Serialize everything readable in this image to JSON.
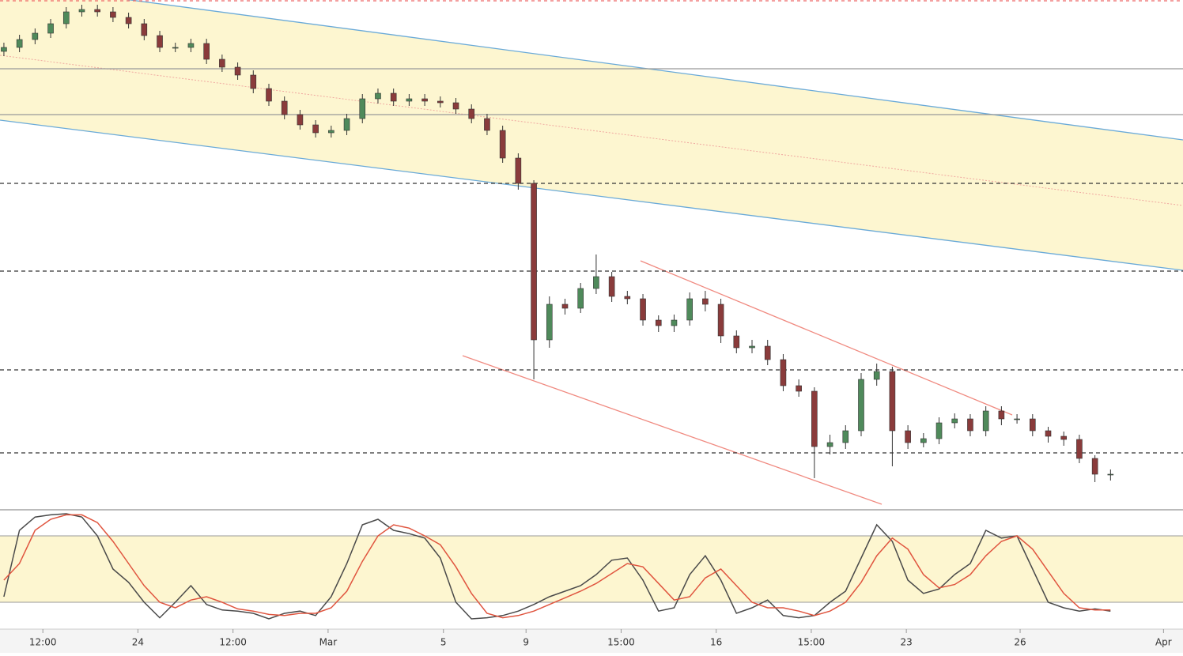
{
  "chart_data": [
    {
      "type": "candlestick",
      "xlim": [
        -0.25,
        75.65
      ],
      "ylim": [
        0,
        640
      ],
      "up_color": "#4f8a5b",
      "down_color": "#8a3b3b",
      "open": [
        575,
        580,
        590,
        598,
        610,
        625,
        628,
        625,
        618,
        610,
        595,
        580,
        580,
        585,
        565,
        555,
        545,
        528,
        512,
        495,
        482,
        472,
        475,
        490,
        515,
        522,
        512,
        515,
        512,
        510,
        502,
        490,
        475,
        440,
        408,
        210,
        255,
        250,
        275,
        290,
        265,
        262,
        235,
        228,
        235,
        262,
        255,
        215,
        200,
        202,
        185,
        152,
        145,
        75,
        80,
        95,
        160,
        170,
        95,
        80,
        85,
        105,
        110,
        95,
        120,
        110,
        110,
        95,
        88,
        84,
        60,
        40
      ],
      "high": [
        586,
        596,
        604,
        616,
        631,
        634,
        634,
        631,
        624,
        616,
        601,
        586,
        591,
        591,
        571,
        561,
        551,
        534,
        518,
        501,
        488,
        481,
        496,
        521,
        528,
        528,
        521,
        521,
        518,
        516,
        508,
        496,
        481,
        446,
        412,
        265,
        262,
        282,
        318,
        296,
        272,
        268,
        241,
        242,
        270,
        272,
        262,
        222,
        210,
        210,
        192,
        160,
        150,
        90,
        102,
        168,
        180,
        176,
        102,
        92,
        112,
        117,
        116,
        126,
        126,
        116,
        116,
        100,
        94,
        90,
        64,
        46
      ],
      "low": [
        569,
        574,
        584,
        592,
        604,
        619,
        619,
        612,
        604,
        589,
        574,
        574,
        574,
        559,
        549,
        539,
        522,
        506,
        489,
        476,
        466,
        466,
        469,
        484,
        509,
        506,
        506,
        506,
        504,
        496,
        484,
        469,
        434,
        400,
        160,
        200,
        242,
        244,
        268,
        258,
        255,
        228,
        220,
        220,
        228,
        246,
        206,
        193,
        193,
        178,
        145,
        138,
        35,
        65,
        72,
        88,
        152,
        50,
        72,
        74,
        78,
        98,
        88,
        88,
        102,
        104,
        88,
        80,
        76,
        54,
        30,
        32
      ],
      "close": [
        580,
        590,
        598,
        610,
        625,
        628,
        625,
        618,
        610,
        595,
        580,
        580,
        585,
        565,
        555,
        545,
        528,
        512,
        495,
        482,
        472,
        475,
        490,
        515,
        522,
        512,
        515,
        512,
        510,
        502,
        490,
        475,
        440,
        408,
        210,
        255,
        250,
        275,
        290,
        265,
        262,
        235,
        228,
        235,
        262,
        255,
        215,
        200,
        202,
        185,
        152,
        145,
        75,
        80,
        95,
        160,
        170,
        95,
        80,
        85,
        105,
        110,
        95,
        120,
        110,
        110,
        95,
        88,
        84,
        60,
        40,
        40
      ],
      "levels": [
        408,
        297,
        172,
        67
      ],
      "solid_levels": [
        553,
        495
      ],
      "top_level": 640
    },
    {
      "type": "line",
      "xlim": [
        -0.25,
        75.65
      ],
      "ylim": [
        0,
        100
      ],
      "band": [
        20,
        80
      ],
      "band_color": "#fdf6d0",
      "series": [
        {
          "color": "#4a4a4a",
          "values": [
            25,
            85,
            97,
            99,
            100,
            97,
            80,
            50,
            38,
            20,
            6,
            20,
            35,
            18,
            13,
            12,
            10,
            5,
            10,
            12,
            8,
            25,
            55,
            90,
            95,
            85,
            82,
            78,
            60,
            20,
            5,
            6,
            8,
            12,
            18,
            25,
            30,
            35,
            45,
            58,
            60,
            40,
            12,
            15,
            45,
            62,
            40,
            10,
            15,
            22,
            8,
            6,
            8,
            20,
            30,
            60,
            90,
            75,
            40,
            28,
            32,
            45,
            55,
            85,
            78,
            80,
            50,
            20,
            15,
            12,
            14,
            12
          ]
        },
        {
          "color": "#e0553f",
          "values": [
            40,
            55,
            85,
            95,
            99,
            99,
            92,
            75,
            55,
            35,
            20,
            15,
            22,
            25,
            20,
            14,
            12,
            9,
            8,
            10,
            10,
            15,
            30,
            57,
            80,
            90,
            87,
            80,
            72,
            52,
            28,
            10,
            6,
            8,
            12,
            18,
            24,
            30,
            37,
            46,
            55,
            52,
            37,
            22,
            25,
            42,
            50,
            35,
            20,
            15,
            15,
            12,
            8,
            12,
            20,
            38,
            62,
            78,
            68,
            45,
            33,
            36,
            45,
            62,
            75,
            80,
            68,
            48,
            28,
            15,
            13,
            13
          ]
        }
      ],
      "xticks": [
        {
          "value": 2.5,
          "label": "12:00"
        },
        {
          "value": 8.6,
          "label": "24"
        },
        {
          "value": 14.7,
          "label": "12:00"
        },
        {
          "value": 20.8,
          "label": "Mar"
        },
        {
          "value": 28.2,
          "label": "5"
        },
        {
          "value": 33.5,
          "label": "9"
        },
        {
          "value": 39.6,
          "label": "15:00"
        },
        {
          "value": 45.7,
          "label": "16"
        },
        {
          "value": 51.8,
          "label": "15:00"
        },
        {
          "value": 57.9,
          "label": "23"
        },
        {
          "value": 65.2,
          "label": "26"
        },
        {
          "value": 74.4,
          "label": "Apr"
        }
      ]
    }
  ]
}
